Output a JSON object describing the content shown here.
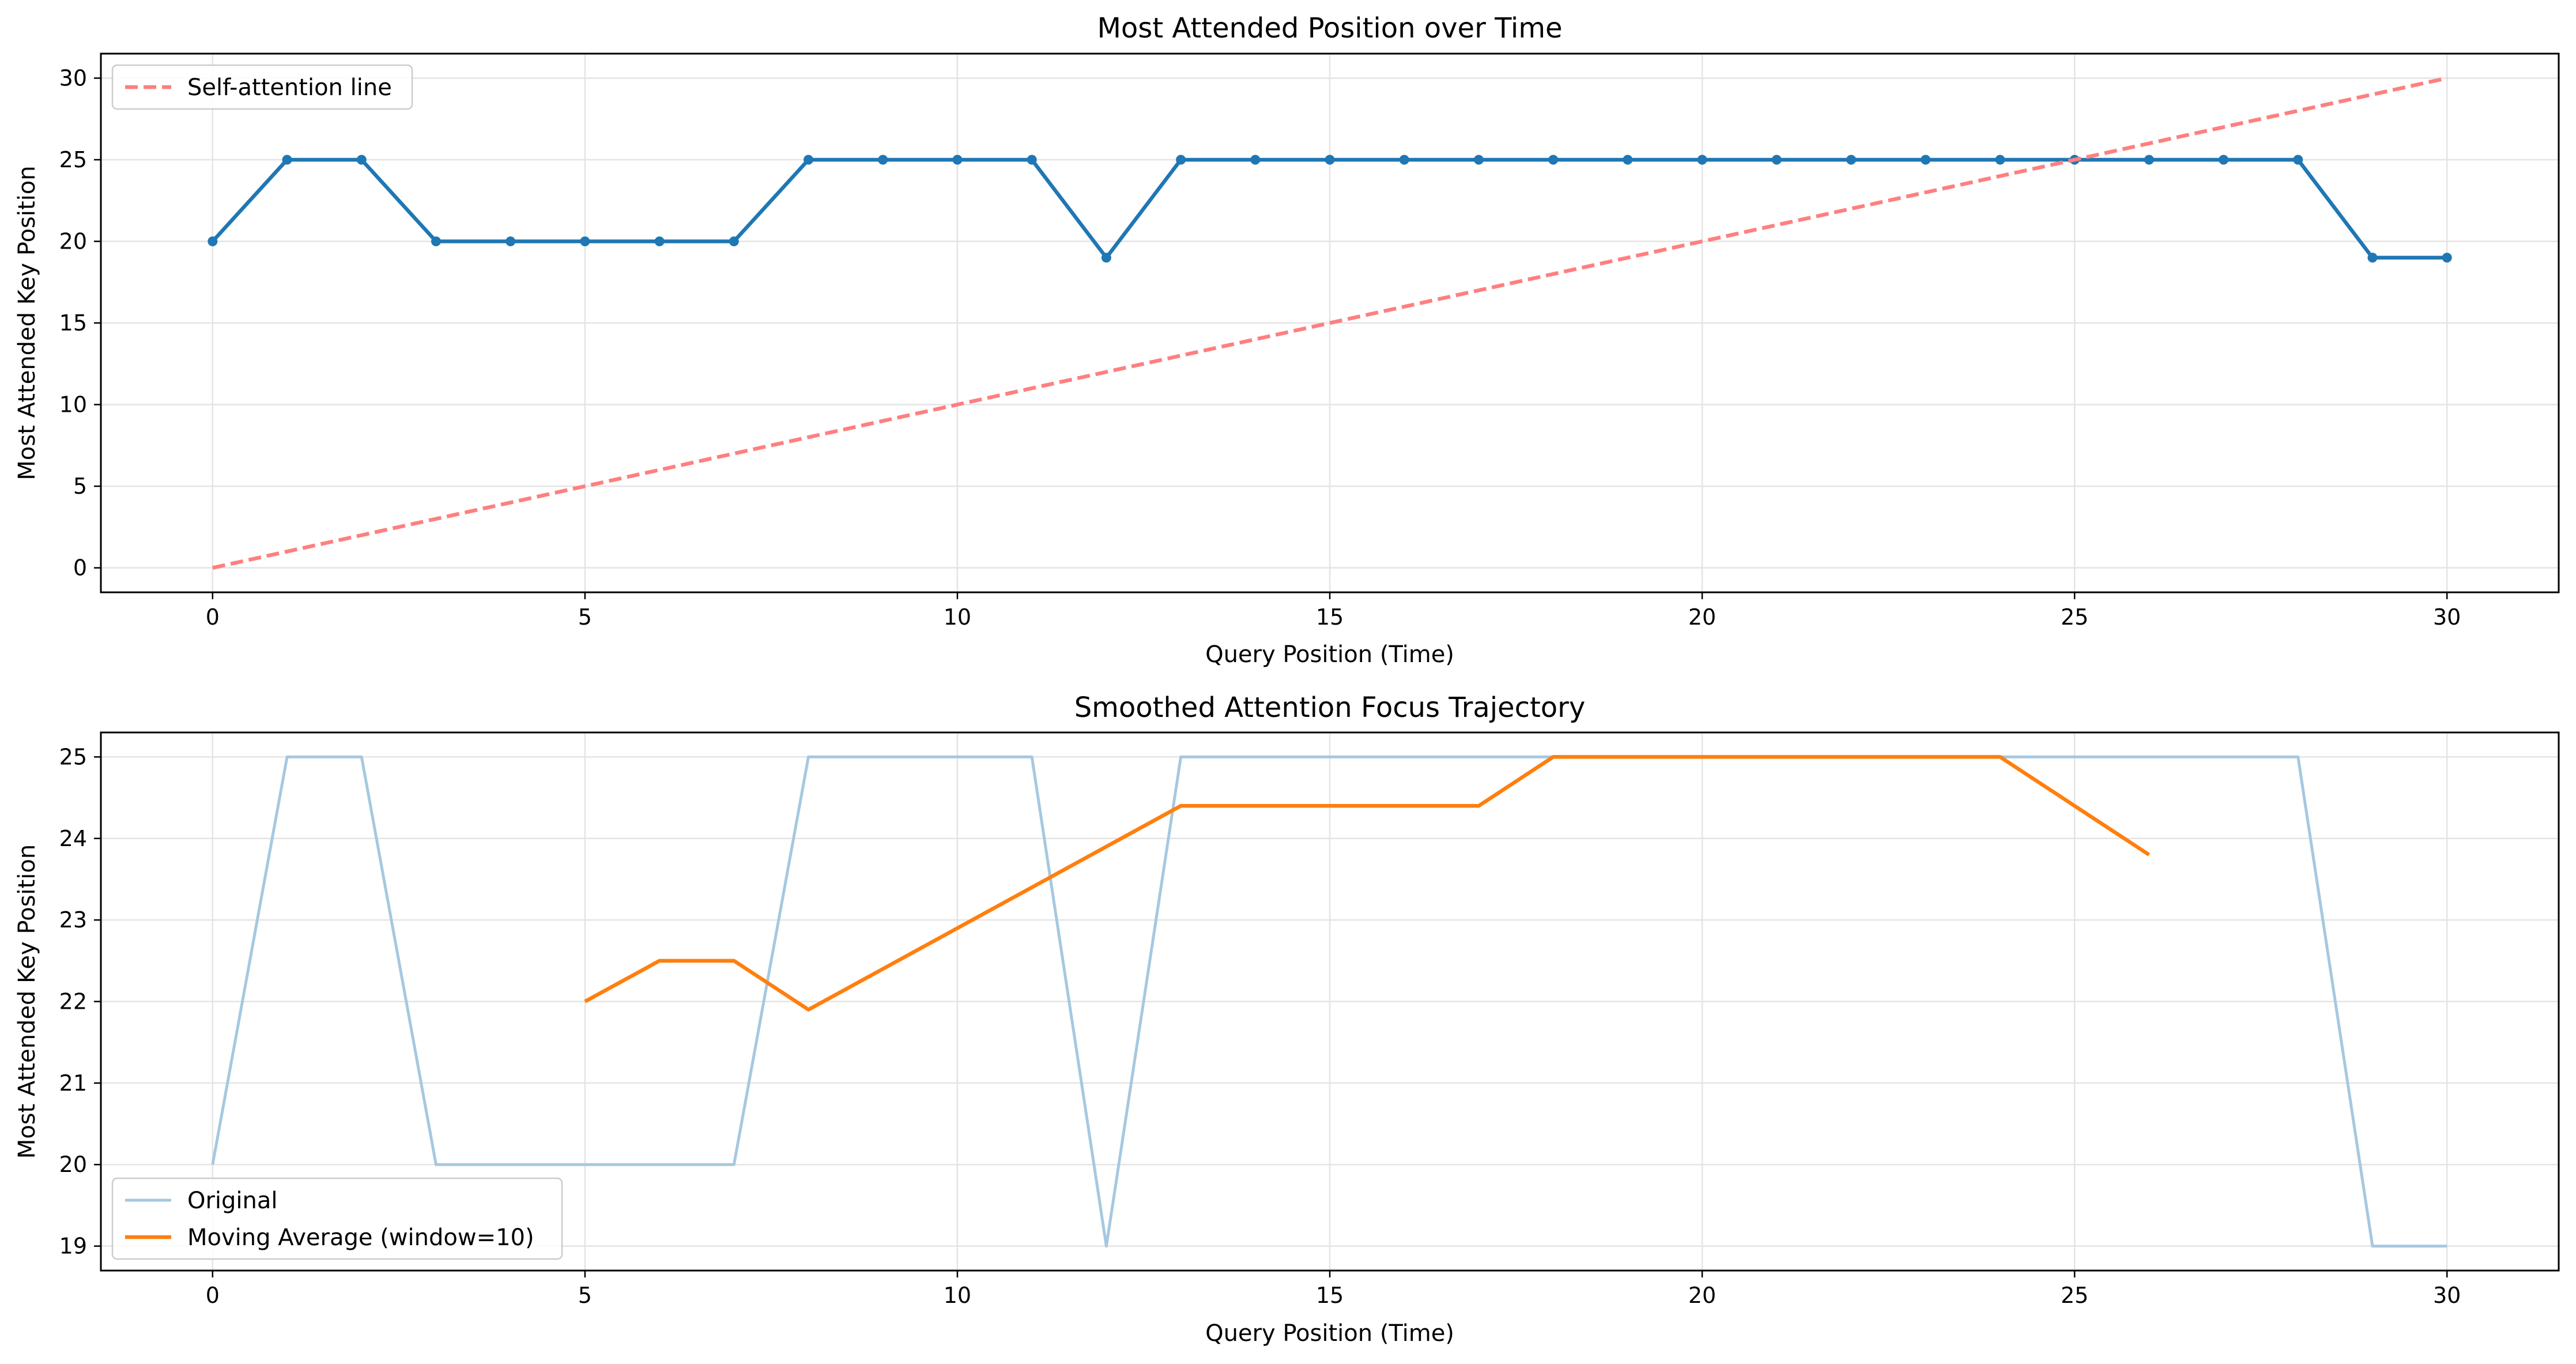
{
  "chart_data": [
    {
      "type": "line",
      "title": "Most Attended Position over Time",
      "xlabel": "Query Position (Time)",
      "ylabel": "Most Attended Key Position",
      "xlim": [
        -1.5,
        31.5
      ],
      "ylim": [
        -1.5,
        31.5
      ],
      "xticks": [
        0,
        5,
        10,
        15,
        20,
        25,
        30
      ],
      "yticks": [
        0,
        5,
        10,
        15,
        20,
        25,
        30
      ],
      "grid": true,
      "legend_position": "top-left",
      "series": [
        {
          "key": "primary",
          "color": "#1f77b4",
          "style": "solid",
          "markers": true,
          "x": [
            0,
            1,
            2,
            3,
            4,
            5,
            6,
            7,
            8,
            9,
            10,
            11,
            12,
            13,
            14,
            15,
            16,
            17,
            18,
            19,
            20,
            21,
            22,
            23,
            24,
            25,
            26,
            27,
            28,
            29,
            30
          ],
          "y": [
            20,
            25,
            25,
            20,
            20,
            20,
            20,
            20,
            25,
            25,
            25,
            25,
            19,
            25,
            25,
            25,
            25,
            25,
            25,
            25,
            25,
            25,
            25,
            25,
            25,
            25,
            25,
            25,
            25,
            19,
            19
          ]
        },
        {
          "key": "self",
          "name": "Self-attention line",
          "color": "#ff7f7f",
          "style": "dashed",
          "markers": false,
          "x": [
            0,
            30
          ],
          "y": [
            0,
            30
          ]
        }
      ]
    },
    {
      "type": "line",
      "title": "Smoothed Attention Focus Trajectory",
      "xlabel": "Query Position (Time)",
      "ylabel": "Most Attended Key Position",
      "xlim": [
        -1.5,
        31.5
      ],
      "ylim": [
        18.7,
        25.3
      ],
      "xticks": [
        0,
        5,
        10,
        15,
        20,
        25,
        30
      ],
      "yticks": [
        19,
        20,
        21,
        22,
        23,
        24,
        25
      ],
      "grid": true,
      "legend_position": "bottom-left",
      "series": [
        {
          "key": "original",
          "name": "Original",
          "color": "#a6c8e0",
          "style": "solid",
          "markers": false,
          "x": [
            0,
            1,
            2,
            3,
            4,
            5,
            6,
            7,
            8,
            9,
            10,
            11,
            12,
            13,
            14,
            15,
            16,
            17,
            18,
            19,
            20,
            21,
            22,
            23,
            24,
            25,
            26,
            27,
            28,
            29,
            30
          ],
          "y": [
            20,
            25,
            25,
            20,
            20,
            20,
            20,
            20,
            25,
            25,
            25,
            25,
            19,
            25,
            25,
            25,
            25,
            25,
            25,
            25,
            25,
            25,
            25,
            25,
            25,
            25,
            25,
            25,
            25,
            19,
            19
          ]
        },
        {
          "key": "smoothed",
          "name": "Moving Average (window=10)",
          "color": "#ff7f0e",
          "style": "solid",
          "markers": false,
          "x": [
            5,
            6,
            7,
            8,
            9,
            10,
            11,
            12,
            13,
            14,
            15,
            16,
            17,
            18,
            19,
            20,
            21,
            22,
            23,
            24,
            25,
            26
          ],
          "y": [
            22,
            22.5,
            22.5,
            21.9,
            22.4,
            22.9,
            23.4,
            23.9,
            24.4,
            24.4,
            24.4,
            24.4,
            24.4,
            25,
            25,
            25,
            25,
            25,
            25,
            25,
            24.4,
            23.8
          ]
        }
      ]
    }
  ]
}
